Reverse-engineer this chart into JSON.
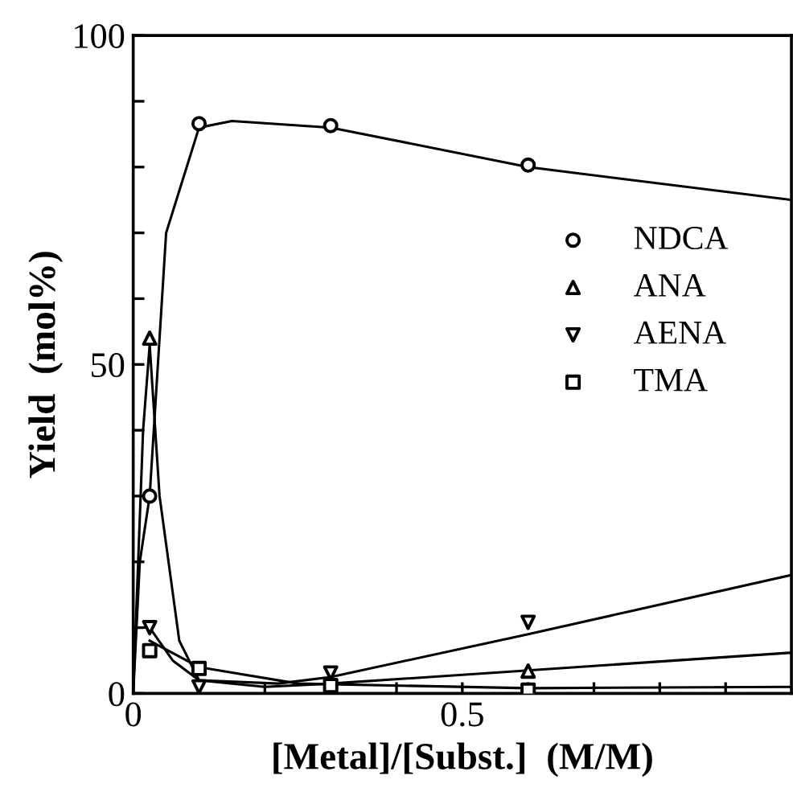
{
  "chart_data": {
    "type": "scatter",
    "xlabel": "[Metal]/[Subst.]  (M/M)",
    "ylabel": "Yield  (mol%)",
    "xlim": [
      0,
      1.0
    ],
    "ylim": [
      0,
      100
    ],
    "xticks": [
      0,
      {
        "value": 0.1,
        "label": null
      },
      {
        "value": 0.2,
        "label": null
      },
      {
        "value": 0.3,
        "label": null
      },
      {
        "value": 0.4,
        "label": null
      },
      0.5,
      {
        "value": 0.6,
        "label": null
      },
      {
        "value": 0.7,
        "label": null
      },
      {
        "value": 0.8,
        "label": null
      },
      {
        "value": 0.9,
        "label": null
      }
    ],
    "yticks": [
      0,
      {
        "value": 10,
        "label": null
      },
      {
        "value": 20,
        "label": null
      },
      {
        "value": 30,
        "label": null
      },
      {
        "value": 40,
        "label": null
      },
      50,
      {
        "value": 60,
        "label": null
      },
      {
        "value": 70,
        "label": null
      },
      {
        "value": 80,
        "label": null
      },
      {
        "value": 90,
        "label": null
      },
      100
    ],
    "legend": "right",
    "grid": false,
    "series": [
      {
        "name": "NDCA",
        "color": "#000000",
        "marker": "circle",
        "x": [
          0.025,
          0.1,
          0.3,
          0.6
        ],
        "values": [
          30,
          86.6,
          86.3,
          80.3
        ]
      },
      {
        "name": "ANA",
        "color": "#000000",
        "marker": "triangle",
        "x": [
          0.025,
          0.1,
          0.3,
          0.6
        ],
        "values": [
          54,
          null,
          null,
          3.4
        ]
      },
      {
        "name": "AENA",
        "color": "#000000",
        "marker": "triangle_down",
        "x": [
          0.025,
          0.1,
          0.3,
          0.6
        ],
        "values": [
          10,
          1,
          3.1,
          10.8
        ]
      },
      {
        "name": "TMA",
        "color": "#000000",
        "marker": "square",
        "x": [
          0.025,
          0.1,
          0.3,
          0.6
        ],
        "values": [
          6.5,
          3.8,
          1.2,
          0.5
        ]
      },
      {
        "type": "line",
        "color": "#000000",
        "x": [
          0,
          0.01,
          0.025,
          0.05,
          0.1,
          0.15,
          0.3,
          0.6,
          1.0
        ],
        "values": [
          0,
          20,
          30,
          70,
          86,
          87,
          86,
          80,
          75
        ]
      },
      {
        "type": "line",
        "color": "#000000",
        "x": [
          0,
          0.015,
          0.025,
          0.04,
          0.07,
          0.1,
          0.2,
          0.3,
          0.6,
          1.0
        ],
        "values": [
          0,
          40,
          53,
          30,
          8,
          2,
          1,
          1.5,
          3.5,
          6.2
        ]
      },
      {
        "type": "line",
        "color": "#000000",
        "x": [
          0,
          0.025,
          0.06,
          0.1,
          0.22,
          0.3,
          0.6,
          1.0
        ],
        "values": [
          10,
          10,
          5,
          2,
          1.5,
          2.5,
          9,
          18
        ]
      },
      {
        "type": "line",
        "color": "#000000",
        "x": [
          0.025,
          0.1,
          0.25,
          0.6,
          1.0
        ],
        "values": [
          8,
          4,
          1.5,
          0.8,
          1
        ]
      }
    ]
  }
}
